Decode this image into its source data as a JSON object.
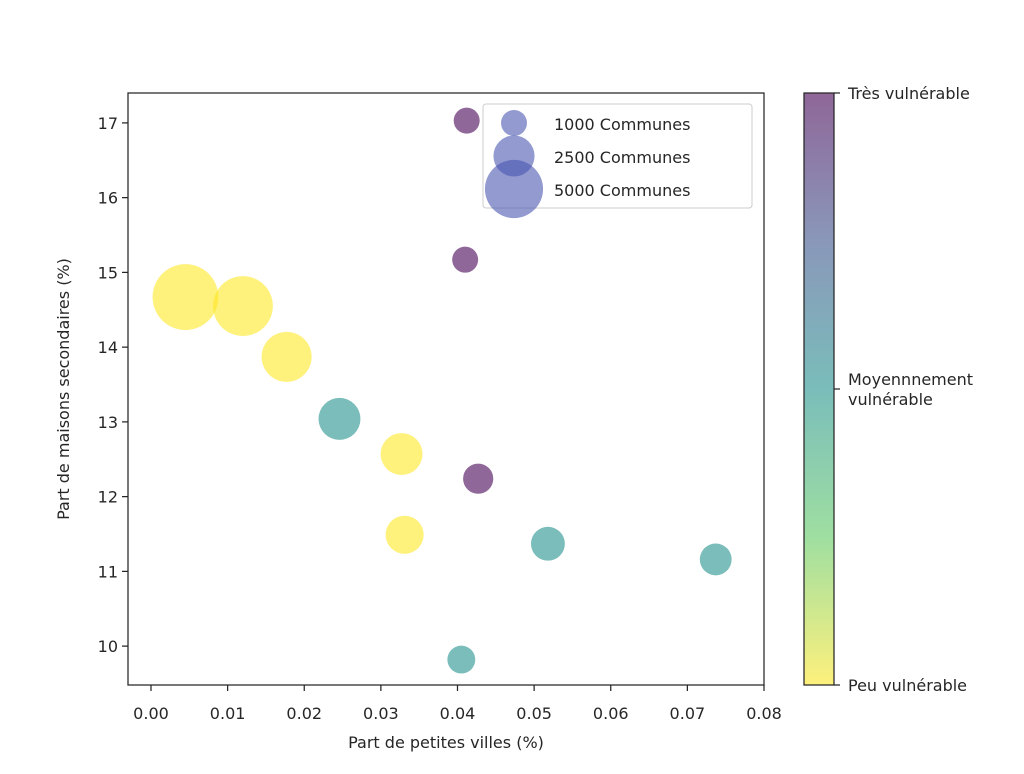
{
  "chart_data": {
    "type": "scatter",
    "title": "",
    "xlabel": "Part de petites villes (%)",
    "ylabel": "Part de maisons secondaires (%)",
    "xlim": [
      -0.003,
      0.08
    ],
    "ylim": [
      9.48,
      17.4
    ],
    "xticks": [
      0.0,
      0.01,
      0.02,
      0.03,
      0.04,
      0.05,
      0.06,
      0.07,
      0.08
    ],
    "xtick_labels": [
      "0.00",
      "0.01",
      "0.02",
      "0.03",
      "0.04",
      "0.05",
      "0.06",
      "0.07",
      "0.08"
    ],
    "yticks": [
      10,
      11,
      12,
      13,
      14,
      15,
      16,
      17
    ],
    "ytick_labels": [
      "10",
      "11",
      "12",
      "13",
      "14",
      "15",
      "16",
      "17"
    ],
    "grid": false,
    "alpha": 0.6,
    "points": [
      {
        "x": 0.0045,
        "y": 14.67,
        "communes": 6400,
        "vulnerability": 0
      },
      {
        "x": 0.012,
        "y": 14.55,
        "communes": 5300,
        "vulnerability": 0
      },
      {
        "x": 0.0177,
        "y": 13.87,
        "communes": 3700,
        "vulnerability": 0
      },
      {
        "x": 0.0246,
        "y": 13.04,
        "communes": 2600,
        "vulnerability": 0.5
      },
      {
        "x": 0.0327,
        "y": 12.57,
        "communes": 2600,
        "vulnerability": 0
      },
      {
        "x": 0.0331,
        "y": 11.49,
        "communes": 2150,
        "vulnerability": 0
      },
      {
        "x": 0.0427,
        "y": 12.24,
        "communes": 1350,
        "vulnerability": 1
      },
      {
        "x": 0.0518,
        "y": 11.37,
        "communes": 1700,
        "vulnerability": 0.5
      },
      {
        "x": 0.0737,
        "y": 11.16,
        "communes": 1500,
        "vulnerability": 0.5
      },
      {
        "x": 0.0405,
        "y": 9.82,
        "communes": 1150,
        "vulnerability": 0.5
      },
      {
        "x": 0.0412,
        "y": 17.03,
        "communes": 1000,
        "vulnerability": 1
      },
      {
        "x": 0.041,
        "y": 15.17,
        "communes": 1000,
        "vulnerability": 1
      }
    ],
    "size_legend": {
      "placement": "top-right",
      "color": "#4a57b0",
      "entries": [
        {
          "communes": 1000,
          "label": "1000 Communes"
        },
        {
          "communes": 2500,
          "label": "2500 Communes"
        },
        {
          "communes": 5000,
          "label": "5000 Communes"
        }
      ]
    },
    "colorbar": {
      "placement": "right",
      "colormap": "viridis",
      "range": [
        0,
        1
      ],
      "ticks": [
        {
          "value": 1,
          "label": "Très vulnérable"
        },
        {
          "value": 0.5,
          "label": " Moyennnement\nvulnérable"
        },
        {
          "value": 0,
          "label": "Peu vulnérable"
        }
      ],
      "stops": [
        "#fde725",
        "#5ec962",
        "#21918c",
        "#3b528b",
        "#440154"
      ]
    }
  }
}
